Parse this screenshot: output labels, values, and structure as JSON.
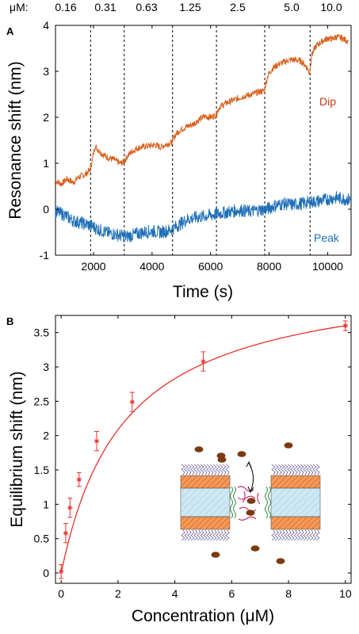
{
  "chart_data": [
    {
      "panel": "A",
      "type": "line",
      "xlabel": "Time (s)",
      "ylabel": "Resonance shift (nm)",
      "xlim": [
        700,
        10800
      ],
      "ylim": [
        -1,
        4
      ],
      "x_ticks": [
        2000,
        4000,
        6000,
        8000,
        10000
      ],
      "y_ticks": [
        -1,
        0,
        1,
        2,
        3,
        4
      ],
      "grid": false,
      "concentration_prefix": "μM:",
      "concentration_labels": [
        "0.16",
        "0.31",
        "0.63",
        "1.25",
        "2.5",
        "5.0",
        "10.0"
      ],
      "injection_times": [
        1900,
        3050,
        4700,
        6200,
        7850,
        9400
      ],
      "series": [
        {
          "name": "Dip",
          "color": "#d95f1a",
          "points": [
            [
              700,
              0.62
            ],
            [
              900,
              0.55
            ],
            [
              1100,
              0.66
            ],
            [
              1300,
              0.58
            ],
            [
              1500,
              0.7
            ],
            [
              1700,
              0.75
            ],
            [
              1880,
              0.85
            ],
            [
              1950,
              1.05
            ],
            [
              2050,
              1.38
            ],
            [
              2150,
              1.3
            ],
            [
              2300,
              1.2
            ],
            [
              2500,
              1.12
            ],
            [
              2700,
              1.08
            ],
            [
              2900,
              1.0
            ],
            [
              3040,
              1.02
            ],
            [
              3150,
              1.15
            ],
            [
              3300,
              1.25
            ],
            [
              3500,
              1.33
            ],
            [
              3700,
              1.36
            ],
            [
              3900,
              1.38
            ],
            [
              4100,
              1.4
            ],
            [
              4300,
              1.35
            ],
            [
              4500,
              1.42
            ],
            [
              4680,
              1.45
            ],
            [
              4800,
              1.62
            ],
            [
              4950,
              1.72
            ],
            [
              5200,
              1.8
            ],
            [
              5400,
              1.85
            ],
            [
              5600,
              1.95
            ],
            [
              5800,
              2.02
            ],
            [
              6000,
              2.0
            ],
            [
              6180,
              2.05
            ],
            [
              6300,
              2.22
            ],
            [
              6500,
              2.3
            ],
            [
              6800,
              2.38
            ],
            [
              7100,
              2.45
            ],
            [
              7400,
              2.5
            ],
            [
              7650,
              2.55
            ],
            [
              7830,
              2.58
            ],
            [
              7950,
              2.9
            ],
            [
              8100,
              3.05
            ],
            [
              8300,
              3.15
            ],
            [
              8500,
              3.2
            ],
            [
              8700,
              3.25
            ],
            [
              8900,
              3.25
            ],
            [
              9100,
              3.22
            ],
            [
              9300,
              3.08
            ],
            [
              9380,
              2.95
            ],
            [
              9450,
              3.35
            ],
            [
              9600,
              3.55
            ],
            [
              9800,
              3.65
            ],
            [
              10000,
              3.72
            ],
            [
              10150,
              3.7
            ],
            [
              10300,
              3.75
            ],
            [
              10500,
              3.72
            ],
            [
              10700,
              3.65
            ]
          ]
        },
        {
          "name": "Peak",
          "color": "#1f6fb8",
          "points": [
            [
              700,
              -0.05
            ],
            [
              1000,
              -0.12
            ],
            [
              1300,
              -0.25
            ],
            [
              1600,
              -0.3
            ],
            [
              1900,
              -0.35
            ],
            [
              2200,
              -0.45
            ],
            [
              2500,
              -0.52
            ],
            [
              2800,
              -0.55
            ],
            [
              3100,
              -0.6
            ],
            [
              3400,
              -0.55
            ],
            [
              3700,
              -0.5
            ],
            [
              4000,
              -0.48
            ],
            [
              4300,
              -0.5
            ],
            [
              4600,
              -0.46
            ],
            [
              4900,
              -0.35
            ],
            [
              5200,
              -0.22
            ],
            [
              5500,
              -0.18
            ],
            [
              5800,
              -0.15
            ],
            [
              6100,
              -0.12
            ],
            [
              6400,
              -0.08
            ],
            [
              6700,
              -0.05
            ],
            [
              7000,
              -0.02
            ],
            [
              7300,
              -0.05
            ],
            [
              7600,
              -0.02
            ],
            [
              7900,
              0.0
            ],
            [
              8200,
              0.08
            ],
            [
              8500,
              0.12
            ],
            [
              8800,
              0.1
            ],
            [
              9100,
              0.12
            ],
            [
              9400,
              0.15
            ],
            [
              9700,
              0.18
            ],
            [
              10000,
              0.22
            ],
            [
              10300,
              0.25
            ],
            [
              10600,
              0.22
            ],
            [
              10800,
              0.2
            ]
          ]
        }
      ]
    },
    {
      "panel": "B",
      "type": "scatter",
      "xlabel": "Concentration (μM)",
      "ylabel": "Equilibrium shift (nm)",
      "xlim": [
        -0.2,
        10.2
      ],
      "ylim": [
        -0.15,
        3.75
      ],
      "x_ticks": [
        0,
        2,
        4,
        6,
        8,
        10
      ],
      "y_ticks": [
        0,
        0.5,
        1,
        1.5,
        2,
        2.5,
        3,
        3.5
      ],
      "y_tick_labels": [
        "0",
        "0.5",
        "1",
        "1.5",
        "2",
        "2.5",
        "3",
        "3.5"
      ],
      "grid": false,
      "color": "#e8312a",
      "marker": "asterisk",
      "x": [
        0.0,
        0.16,
        0.31,
        0.63,
        1.25,
        2.5,
        5.0,
        10.0
      ],
      "y": [
        0.02,
        0.58,
        0.95,
        1.36,
        1.92,
        2.49,
        3.08,
        3.6
      ],
      "y_err": [
        0.1,
        0.14,
        0.14,
        0.1,
        0.14,
        0.14,
        0.14,
        0.07
      ],
      "fit_curve": {
        "model": "langmuir",
        "bmax": 4.4,
        "kd": 2.22,
        "color": "#e8312a"
      },
      "inset": {
        "content": "schematic-membrane-nanopore-with-molecules"
      }
    }
  ]
}
